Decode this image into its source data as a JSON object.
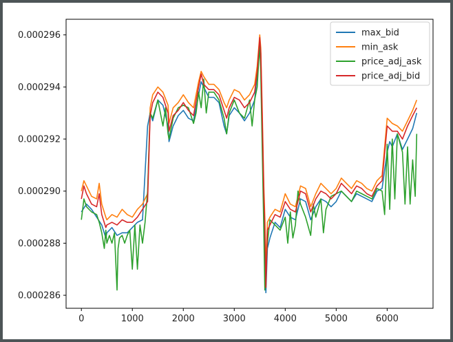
{
  "chart_data": {
    "type": "line",
    "title": "",
    "xlabel": "",
    "ylabel": "",
    "xlim": [
      -300,
      6900
    ],
    "ylim": [
      0.0002855,
      0.0002966
    ],
    "xticks": [
      0,
      1000,
      2000,
      3000,
      4000,
      5000,
      6000
    ],
    "xtick_labels": [
      "0",
      "1000",
      "2000",
      "3000",
      "4000",
      "5000",
      "6000"
    ],
    "yticks": [
      0.000286,
      0.000288,
      0.00029,
      0.000292,
      0.000294,
      0.000296
    ],
    "ytick_labels": [
      "0.000286",
      "0.000288",
      "0.000290",
      "0.000292",
      "0.000294",
      "0.000296"
    ],
    "grid": false,
    "legend_position": "top-right",
    "series": [
      {
        "name": "max_bid",
        "color": "#1f77b4",
        "x": [
          0,
          100,
          200,
          300,
          400,
          480,
          500,
          600,
          700,
          800,
          900,
          1000,
          1100,
          1200,
          1300,
          1350,
          1400,
          1500,
          1600,
          1700,
          1720,
          1800,
          1900,
          2000,
          2100,
          2200,
          2300,
          2350,
          2400,
          2500,
          2600,
          2700,
          2800,
          2850,
          2900,
          3000,
          3100,
          3200,
          3300,
          3400,
          3450,
          3500,
          3520,
          3550,
          3580,
          3600,
          3620,
          3650,
          3700,
          3800,
          3900,
          4000,
          4100,
          4200,
          4300,
          4400,
          4500,
          4600,
          4700,
          4800,
          4900,
          5000,
          5100,
          5200,
          5300,
          5400,
          5500,
          5600,
          5700,
          5800,
          5900,
          6000,
          6050,
          6100,
          6200,
          6300,
          6400,
          6500,
          6580
        ],
        "y": [
          0.0002892,
          0.0002895,
          0.0002893,
          0.000289,
          0.0002887,
          0.0002882,
          0.0002884,
          0.0002886,
          0.0002883,
          0.0002884,
          0.0002884,
          0.0002886,
          0.0002888,
          0.0002889,
          0.0002925,
          0.000293,
          0.0002927,
          0.0002935,
          0.0002933,
          0.0002925,
          0.0002919,
          0.0002925,
          0.0002929,
          0.0002931,
          0.0002928,
          0.0002927,
          0.0002937,
          0.0002942,
          0.000294,
          0.0002936,
          0.0002936,
          0.0002934,
          0.0002925,
          0.0002922,
          0.0002929,
          0.0002932,
          0.000293,
          0.0002927,
          0.000293,
          0.0002935,
          0.0002945,
          0.0002955,
          0.0002948,
          0.000292,
          0.0002895,
          0.000288,
          0.0002861,
          0.0002878,
          0.0002882,
          0.0002888,
          0.0002886,
          0.0002893,
          0.000289,
          0.0002889,
          0.0002897,
          0.0002896,
          0.0002889,
          0.0002894,
          0.0002897,
          0.0002896,
          0.0002894,
          0.0002896,
          0.00029,
          0.0002898,
          0.0002896,
          0.0002899,
          0.0002898,
          0.0002897,
          0.0002896,
          0.00029,
          0.0002901,
          0.0002915,
          0.0002919,
          0.0002917,
          0.0002922,
          0.0002916,
          0.000292,
          0.0002924,
          0.000293
        ]
      },
      {
        "name": "min_ask",
        "color": "#ff7f0e",
        "x": [
          0,
          50,
          100,
          200,
          300,
          350,
          400,
          480,
          500,
          600,
          700,
          800,
          900,
          1000,
          1100,
          1200,
          1300,
          1350,
          1400,
          1500,
          1600,
          1700,
          1720,
          1800,
          1900,
          2000,
          2100,
          2200,
          2300,
          2350,
          2400,
          2500,
          2600,
          2700,
          2800,
          2850,
          2900,
          3000,
          3100,
          3200,
          3300,
          3400,
          3450,
          3500,
          3520,
          3550,
          3580,
          3600,
          3620,
          3650,
          3700,
          3800,
          3900,
          4000,
          4100,
          4200,
          4300,
          4400,
          4500,
          4600,
          4700,
          4800,
          4900,
          5000,
          5100,
          5200,
          5300,
          5400,
          5500,
          5600,
          5700,
          5800,
          5900,
          6000,
          6050,
          6100,
          6200,
          6300,
          6400,
          6500,
          6580
        ],
        "y": [
          0.00029,
          0.0002904,
          0.0002902,
          0.0002898,
          0.0002897,
          0.0002903,
          0.0002895,
          0.000289,
          0.0002889,
          0.0002891,
          0.000289,
          0.0002893,
          0.0002891,
          0.000289,
          0.0002893,
          0.0002895,
          0.0002899,
          0.0002932,
          0.0002937,
          0.000294,
          0.0002938,
          0.0002933,
          0.0002926,
          0.0002932,
          0.0002934,
          0.0002937,
          0.0002934,
          0.0002932,
          0.0002942,
          0.0002946,
          0.0002944,
          0.0002941,
          0.0002941,
          0.0002939,
          0.0002934,
          0.0002932,
          0.0002935,
          0.0002939,
          0.0002938,
          0.0002935,
          0.0002937,
          0.0002941,
          0.0002948,
          0.000296,
          0.0002955,
          0.000293,
          0.0002902,
          0.000289,
          0.000287,
          0.0002888,
          0.000289,
          0.0002893,
          0.0002892,
          0.0002899,
          0.0002895,
          0.0002894,
          0.0002902,
          0.0002901,
          0.0002894,
          0.0002899,
          0.0002903,
          0.0002901,
          0.0002899,
          0.0002901,
          0.0002905,
          0.0002903,
          0.0002901,
          0.0002904,
          0.0002903,
          0.0002901,
          0.00029,
          0.0002904,
          0.0002906,
          0.0002928,
          0.0002927,
          0.0002926,
          0.0002925,
          0.0002923,
          0.0002927,
          0.0002931,
          0.0002935
        ]
      },
      {
        "name": "price_adj_ask",
        "color": "#2ca02c",
        "x": [
          0,
          50,
          100,
          200,
          300,
          350,
          400,
          450,
          480,
          500,
          550,
          600,
          650,
          700,
          720,
          750,
          800,
          850,
          900,
          950,
          1000,
          1050,
          1100,
          1150,
          1200,
          1250,
          1300,
          1350,
          1400,
          1500,
          1600,
          1650,
          1700,
          1720,
          1800,
          1900,
          2000,
          2100,
          2200,
          2250,
          2300,
          2350,
          2400,
          2450,
          2500,
          2600,
          2700,
          2800,
          2850,
          2900,
          3000,
          3100,
          3200,
          3300,
          3350,
          3400,
          3450,
          3500,
          3520,
          3550,
          3580,
          3600,
          3620,
          3650,
          3700,
          3800,
          3900,
          4000,
          4050,
          4100,
          4150,
          4200,
          4250,
          4300,
          4400,
          4500,
          4550,
          4600,
          4700,
          4750,
          4800,
          4900,
          5000,
          5100,
          5200,
          5300,
          5400,
          5500,
          5600,
          5700,
          5800,
          5900,
          5950,
          6000,
          6050,
          6100,
          6150,
          6200,
          6300,
          6350,
          6400,
          6450,
          6500,
          6550,
          6580
        ],
        "y": [
          0.0002889,
          0.0002897,
          0.0002894,
          0.0002892,
          0.0002891,
          0.0002888,
          0.0002884,
          0.0002878,
          0.0002885,
          0.000288,
          0.0002883,
          0.000288,
          0.0002884,
          0.0002862,
          0.0002878,
          0.0002882,
          0.0002883,
          0.000288,
          0.0002883,
          0.0002885,
          0.000287,
          0.0002887,
          0.000287,
          0.0002887,
          0.000288,
          0.0002888,
          0.00029,
          0.000293,
          0.0002928,
          0.0002935,
          0.0002925,
          0.0002932,
          0.0002922,
          0.000292,
          0.0002928,
          0.0002932,
          0.0002933,
          0.0002932,
          0.0002926,
          0.000293,
          0.0002938,
          0.0002932,
          0.0002943,
          0.000293,
          0.0002938,
          0.0002938,
          0.0002935,
          0.0002928,
          0.0002922,
          0.000293,
          0.0002935,
          0.000293,
          0.0002928,
          0.0002935,
          0.0002925,
          0.0002935,
          0.000294,
          0.0002957,
          0.0002945,
          0.0002915,
          0.0002885,
          0.0002862,
          0.000287,
          0.000288,
          0.0002889,
          0.0002887,
          0.0002885,
          0.000289,
          0.000288,
          0.0002892,
          0.0002882,
          0.0002887,
          0.00029,
          0.0002895,
          0.000289,
          0.0002883,
          0.0002895,
          0.000289,
          0.0002897,
          0.0002884,
          0.0002893,
          0.0002898,
          0.0002899,
          0.00029,
          0.0002898,
          0.0002896,
          0.00029,
          0.0002899,
          0.0002898,
          0.0002897,
          0.0002901,
          0.00029,
          0.0002891,
          0.0002918,
          0.0002893,
          0.000292,
          0.0002897,
          0.0002922,
          0.0002915,
          0.0002895,
          0.0002917,
          0.0002895,
          0.0002912,
          0.0002898,
          0.0002922
        ]
      },
      {
        "name": "price_adj_bid",
        "color": "#d62728",
        "x": [
          0,
          50,
          100,
          200,
          300,
          350,
          400,
          480,
          500,
          600,
          700,
          800,
          900,
          1000,
          1100,
          1200,
          1300,
          1350,
          1400,
          1500,
          1600,
          1700,
          1720,
          1800,
          1900,
          2000,
          2100,
          2200,
          2300,
          2350,
          2400,
          2500,
          2600,
          2700,
          2800,
          2850,
          2900,
          3000,
          3100,
          3200,
          3300,
          3400,
          3450,
          3500,
          3520,
          3550,
          3580,
          3600,
          3620,
          3650,
          3700,
          3800,
          3900,
          4000,
          4100,
          4200,
          4300,
          4400,
          4500,
          4600,
          4700,
          4800,
          4900,
          5000,
          5100,
          5200,
          5300,
          5400,
          5500,
          5600,
          5700,
          5800,
          5900,
          6000,
          6050,
          6100,
          6200,
          6300,
          6400,
          6500,
          6580
        ],
        "y": [
          0.0002897,
          0.0002902,
          0.0002899,
          0.0002895,
          0.0002894,
          0.0002899,
          0.0002891,
          0.0002886,
          0.0002887,
          0.0002888,
          0.0002887,
          0.0002889,
          0.0002888,
          0.0002888,
          0.000289,
          0.0002893,
          0.0002896,
          0.0002929,
          0.0002934,
          0.0002938,
          0.0002936,
          0.000293,
          0.0002923,
          0.0002929,
          0.0002931,
          0.0002934,
          0.0002931,
          0.0002929,
          0.000294,
          0.0002945,
          0.0002941,
          0.0002939,
          0.0002939,
          0.0002937,
          0.0002931,
          0.0002928,
          0.0002932,
          0.0002936,
          0.0002935,
          0.0002932,
          0.0002934,
          0.0002938,
          0.0002946,
          0.0002959,
          0.0002953,
          0.0002927,
          0.0002899,
          0.0002886,
          0.0002863,
          0.0002885,
          0.0002887,
          0.0002891,
          0.000289,
          0.0002896,
          0.0002893,
          0.0002892,
          0.00029,
          0.0002899,
          0.0002892,
          0.0002897,
          0.00029,
          0.0002899,
          0.0002897,
          0.0002899,
          0.0002903,
          0.0002901,
          0.0002899,
          0.0002902,
          0.0002901,
          0.0002899,
          0.0002898,
          0.0002902,
          0.0002904,
          0.0002925,
          0.0002924,
          0.0002923,
          0.0002923,
          0.000292,
          0.0002925,
          0.0002929,
          0.0002932
        ]
      }
    ]
  }
}
